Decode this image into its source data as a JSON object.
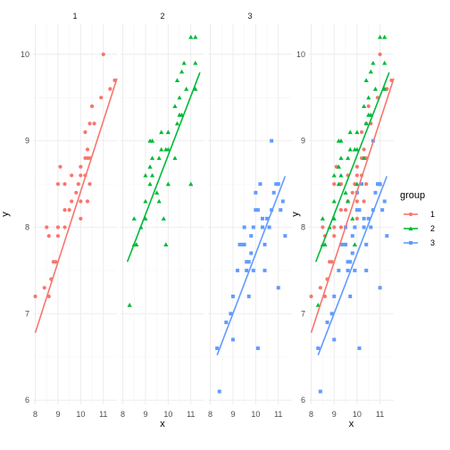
{
  "chart_data": {
    "type": "scatter",
    "xlabel": "x",
    "ylabel": "y",
    "xlim": [
      7.9,
      11.6
    ],
    "ylim": [
      5.95,
      10.35
    ],
    "x_ticks": [
      8,
      9,
      10,
      11
    ],
    "y_ticks": [
      6,
      7,
      8,
      9,
      10
    ],
    "grid": true,
    "legend": {
      "title": "group",
      "position": "right"
    },
    "panels": [
      {
        "strip": "1",
        "groups": [
          "1"
        ]
      },
      {
        "strip": "2",
        "groups": [
          "2"
        ]
      },
      {
        "strip": "3",
        "groups": [
          "3"
        ]
      },
      {
        "strip": "",
        "groups": [
          "1",
          "2",
          "3"
        ]
      }
    ],
    "series": [
      {
        "name": "1",
        "color": "#F8766D",
        "shape": "circle",
        "line": {
          "x": [
            8.0,
            11.6
          ],
          "y": [
            6.78,
            9.72
          ]
        },
        "points": [
          {
            "x": 8.0,
            "y": 7.2
          },
          {
            "x": 8.4,
            "y": 7.3
          },
          {
            "x": 8.6,
            "y": 7.2
          },
          {
            "x": 8.7,
            "y": 7.4
          },
          {
            "x": 8.8,
            "y": 7.6
          },
          {
            "x": 8.9,
            "y": 7.6
          },
          {
            "x": 8.5,
            "y": 8.0
          },
          {
            "x": 8.6,
            "y": 7.9
          },
          {
            "x": 9.0,
            "y": 7.9
          },
          {
            "x": 9.0,
            "y": 8.0
          },
          {
            "x": 9.3,
            "y": 8.0
          },
          {
            "x": 9.3,
            "y": 8.2
          },
          {
            "x": 9.5,
            "y": 8.2
          },
          {
            "x": 9.6,
            "y": 8.3
          },
          {
            "x": 9.8,
            "y": 8.4
          },
          {
            "x": 9.0,
            "y": 8.5
          },
          {
            "x": 9.3,
            "y": 8.5
          },
          {
            "x": 9.6,
            "y": 8.6
          },
          {
            "x": 9.9,
            "y": 8.5
          },
          {
            "x": 10.0,
            "y": 8.3
          },
          {
            "x": 10.0,
            "y": 8.1
          },
          {
            "x": 10.3,
            "y": 8.3
          },
          {
            "x": 10.0,
            "y": 8.6
          },
          {
            "x": 10.2,
            "y": 8.6
          },
          {
            "x": 10.0,
            "y": 8.7
          },
          {
            "x": 10.2,
            "y": 8.8
          },
          {
            "x": 10.3,
            "y": 8.8
          },
          {
            "x": 10.4,
            "y": 8.8
          },
          {
            "x": 10.3,
            "y": 8.9
          },
          {
            "x": 9.1,
            "y": 8.7
          },
          {
            "x": 10.2,
            "y": 9.1
          },
          {
            "x": 10.4,
            "y": 9.2
          },
          {
            "x": 10.5,
            "y": 9.4
          },
          {
            "x": 10.6,
            "y": 9.2
          },
          {
            "x": 10.9,
            "y": 9.5
          },
          {
            "x": 11.0,
            "y": 10.0
          },
          {
            "x": 11.5,
            "y": 9.7
          },
          {
            "x": 11.3,
            "y": 9.6
          },
          {
            "x": 10.4,
            "y": 8.5
          }
        ]
      },
      {
        "name": "2",
        "color": "#00BA38",
        "shape": "triangle",
        "line": {
          "x": [
            8.2,
            11.4
          ],
          "y": [
            7.6,
            9.79
          ]
        },
        "points": [
          {
            "x": 8.3,
            "y": 7.1
          },
          {
            "x": 8.5,
            "y": 7.8
          },
          {
            "x": 8.6,
            "y": 7.8
          },
          {
            "x": 8.5,
            "y": 8.1
          },
          {
            "x": 8.8,
            "y": 8.0
          },
          {
            "x": 9.0,
            "y": 8.1
          },
          {
            "x": 9.0,
            "y": 8.3
          },
          {
            "x": 9.2,
            "y": 8.5
          },
          {
            "x": 9.0,
            "y": 8.6
          },
          {
            "x": 9.3,
            "y": 8.6
          },
          {
            "x": 9.2,
            "y": 8.7
          },
          {
            "x": 9.3,
            "y": 8.8
          },
          {
            "x": 9.6,
            "y": 8.8
          },
          {
            "x": 9.7,
            "y": 8.9
          },
          {
            "x": 9.9,
            "y": 8.9
          },
          {
            "x": 10.0,
            "y": 8.9
          },
          {
            "x": 9.7,
            "y": 9.1
          },
          {
            "x": 9.3,
            "y": 9.0
          },
          {
            "x": 9.2,
            "y": 9.0
          },
          {
            "x": 9.5,
            "y": 8.4
          },
          {
            "x": 9.6,
            "y": 8.3
          },
          {
            "x": 10.0,
            "y": 8.5
          },
          {
            "x": 10.3,
            "y": 8.8
          },
          {
            "x": 10.0,
            "y": 9.1
          },
          {
            "x": 10.4,
            "y": 9.2
          },
          {
            "x": 10.5,
            "y": 9.3
          },
          {
            "x": 10.6,
            "y": 9.3
          },
          {
            "x": 10.3,
            "y": 9.4
          },
          {
            "x": 10.5,
            "y": 9.5
          },
          {
            "x": 10.4,
            "y": 9.7
          },
          {
            "x": 10.6,
            "y": 9.8
          },
          {
            "x": 10.8,
            "y": 9.6
          },
          {
            "x": 10.7,
            "y": 9.9
          },
          {
            "x": 11.0,
            "y": 10.2
          },
          {
            "x": 11.2,
            "y": 10.2
          },
          {
            "x": 11.2,
            "y": 9.9
          },
          {
            "x": 11.2,
            "y": 9.6
          },
          {
            "x": 11.0,
            "y": 8.5
          },
          {
            "x": 9.9,
            "y": 7.8
          },
          {
            "x": 9.8,
            "y": 8.1
          }
        ]
      },
      {
        "name": "3",
        "color": "#619CFF",
        "shape": "square",
        "line": {
          "x": [
            8.3,
            11.3
          ],
          "y": [
            6.52,
            8.59
          ]
        },
        "points": [
          {
            "x": 8.3,
            "y": 6.6
          },
          {
            "x": 8.4,
            "y": 6.1
          },
          {
            "x": 8.7,
            "y": 6.9
          },
          {
            "x": 8.9,
            "y": 7.0
          },
          {
            "x": 9.0,
            "y": 7.2
          },
          {
            "x": 9.0,
            "y": 6.7
          },
          {
            "x": 9.2,
            "y": 7.5
          },
          {
            "x": 9.3,
            "y": 7.8
          },
          {
            "x": 9.4,
            "y": 7.8
          },
          {
            "x": 9.5,
            "y": 7.8
          },
          {
            "x": 9.6,
            "y": 7.5
          },
          {
            "x": 9.6,
            "y": 7.6
          },
          {
            "x": 9.7,
            "y": 7.6
          },
          {
            "x": 9.7,
            "y": 7.2
          },
          {
            "x": 9.8,
            "y": 7.7
          },
          {
            "x": 9.8,
            "y": 7.9
          },
          {
            "x": 9.9,
            "y": 8.0
          },
          {
            "x": 9.9,
            "y": 7.5
          },
          {
            "x": 10.0,
            "y": 8.2
          },
          {
            "x": 10.0,
            "y": 8.4
          },
          {
            "x": 10.1,
            "y": 8.2
          },
          {
            "x": 10.1,
            "y": 6.6
          },
          {
            "x": 10.2,
            "y": 8.5
          },
          {
            "x": 10.3,
            "y": 8.0
          },
          {
            "x": 10.3,
            "y": 8.1
          },
          {
            "x": 10.4,
            "y": 7.5
          },
          {
            "x": 10.4,
            "y": 7.8
          },
          {
            "x": 10.5,
            "y": 8.1
          },
          {
            "x": 10.6,
            "y": 8.0
          },
          {
            "x": 10.7,
            "y": 8.2
          },
          {
            "x": 10.7,
            "y": 9.0
          },
          {
            "x": 10.8,
            "y": 8.4
          },
          {
            "x": 10.9,
            "y": 8.5
          },
          {
            "x": 11.0,
            "y": 8.5
          },
          {
            "x": 11.1,
            "y": 8.2
          },
          {
            "x": 11.2,
            "y": 8.3
          },
          {
            "x": 11.3,
            "y": 7.9
          },
          {
            "x": 11.0,
            "y": 7.3
          },
          {
            "x": 9.5,
            "y": 8.0
          }
        ]
      }
    ]
  }
}
